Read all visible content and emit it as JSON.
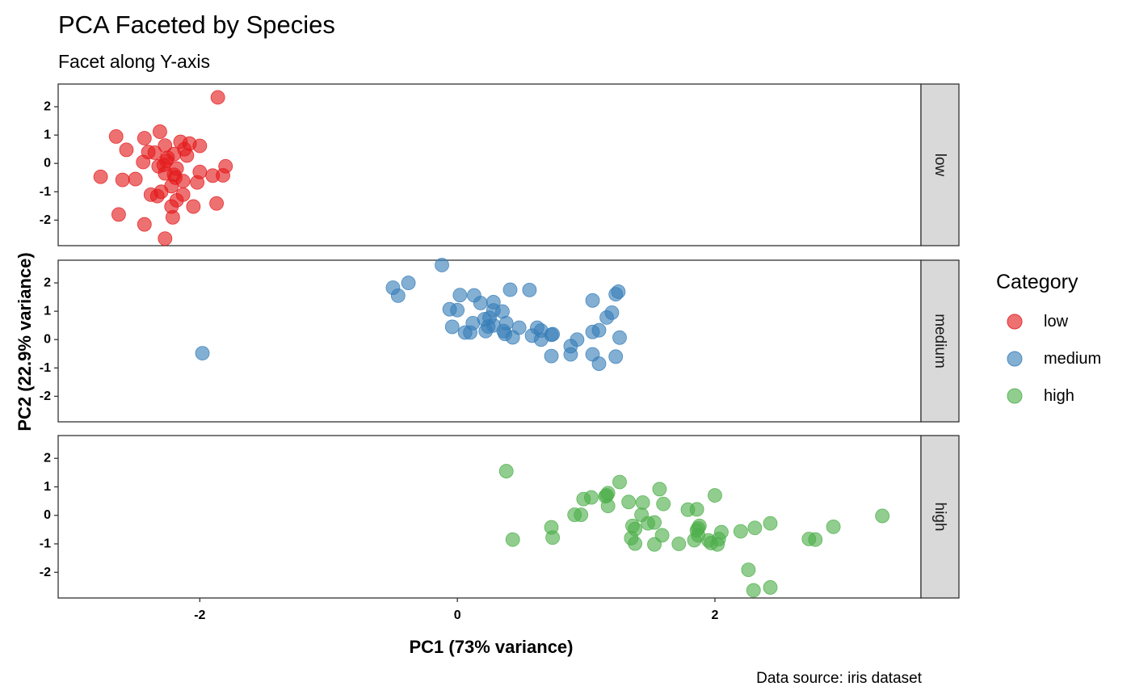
{
  "chart_data": {
    "type": "scatter",
    "title": "PCA Faceted by Species",
    "subtitle": "Facet along Y-axis",
    "xlabel": "PC1 (73% variance)",
    "ylabel": "PC2 (22.9% variance)",
    "caption": "Data source: iris dataset",
    "xlim": [
      -3.1,
      3.6
    ],
    "ylim": [
      -2.9,
      2.8
    ],
    "x_ticks": [
      -2,
      0,
      2
    ],
    "x_tick_labels": [
      "-2",
      "0",
      "2"
    ],
    "y_ticks": [
      2,
      1,
      0,
      -1,
      -2
    ],
    "y_tick_labels": [
      "2",
      "1",
      "0",
      "-1",
      "-2"
    ],
    "grid": false,
    "legend": {
      "title": "Category",
      "position": "right",
      "entries": [
        {
          "label": "low",
          "color": "#E41A1C"
        },
        {
          "label": "medium",
          "color": "#377EB8"
        },
        {
          "label": "high",
          "color": "#4DAF4A"
        }
      ]
    },
    "facets": [
      {
        "strip_label": "low",
        "color": "#E41A1C",
        "points": [
          [
            -1.86,
            2.33
          ],
          [
            -2.65,
            0.95
          ],
          [
            -2.31,
            1.12
          ],
          [
            -2.43,
            0.89
          ],
          [
            -2.15,
            0.76
          ],
          [
            -2.08,
            0.7
          ],
          [
            -2.0,
            0.62
          ],
          [
            -2.27,
            0.63
          ],
          [
            -2.4,
            0.4
          ],
          [
            -2.12,
            0.5
          ],
          [
            -2.57,
            0.48
          ],
          [
            -2.35,
            0.38
          ],
          [
            -2.2,
            0.33
          ],
          [
            -2.25,
            0.2
          ],
          [
            -2.44,
            0.05
          ],
          [
            -2.32,
            -0.1
          ],
          [
            -2.18,
            -0.18
          ],
          [
            -1.8,
            -0.1
          ],
          [
            -2.0,
            -0.3
          ],
          [
            -2.27,
            -0.35
          ],
          [
            -1.82,
            -0.42
          ],
          [
            -1.9,
            -0.43
          ],
          [
            -2.2,
            -0.4
          ],
          [
            -2.5,
            -0.55
          ],
          [
            -2.13,
            -0.62
          ],
          [
            -2.02,
            -0.67
          ],
          [
            -2.77,
            -0.47
          ],
          [
            -2.6,
            -0.58
          ],
          [
            -2.22,
            -0.8
          ],
          [
            -2.3,
            -1.0
          ],
          [
            -2.13,
            -1.1
          ],
          [
            -2.38,
            -1.1
          ],
          [
            -2.33,
            -1.15
          ],
          [
            -2.18,
            -1.3
          ],
          [
            -1.87,
            -1.41
          ],
          [
            -2.05,
            -1.52
          ],
          [
            -2.22,
            -1.52
          ],
          [
            -2.63,
            -1.8
          ],
          [
            -2.21,
            -1.9
          ],
          [
            -2.43,
            -2.15
          ],
          [
            -2.27,
            -2.65
          ],
          [
            -2.26,
            0.1
          ],
          [
            -2.19,
            -0.5
          ],
          [
            -2.1,
            0.28
          ],
          [
            -2.28,
            -0.05
          ]
        ]
      },
      {
        "strip_label": "medium",
        "color": "#377EB8",
        "points": [
          [
            -0.12,
            2.63
          ],
          [
            -0.38,
            2.0
          ],
          [
            -0.5,
            1.83
          ],
          [
            -0.46,
            1.55
          ],
          [
            1.25,
            1.69
          ],
          [
            1.23,
            1.6
          ],
          [
            0.41,
            1.76
          ],
          [
            0.56,
            1.75
          ],
          [
            0.02,
            1.57
          ],
          [
            0.13,
            1.56
          ],
          [
            0.18,
            1.29
          ],
          [
            0.28,
            1.32
          ],
          [
            1.05,
            1.38
          ],
          [
            -0.06,
            1.07
          ],
          [
            0.0,
            1.04
          ],
          [
            0.35,
            0.99
          ],
          [
            0.28,
            1.03
          ],
          [
            1.2,
            0.95
          ],
          [
            1.16,
            0.78
          ],
          [
            0.38,
            0.58
          ],
          [
            0.25,
            0.77
          ],
          [
            0.21,
            0.72
          ],
          [
            0.12,
            0.58
          ],
          [
            0.24,
            0.46
          ],
          [
            0.36,
            0.3
          ],
          [
            0.48,
            0.42
          ],
          [
            0.62,
            0.42
          ],
          [
            0.65,
            0.32
          ],
          [
            0.06,
            0.25
          ],
          [
            0.1,
            0.25
          ],
          [
            0.22,
            0.3
          ],
          [
            0.37,
            0.2
          ],
          [
            0.43,
            0.08
          ],
          [
            0.58,
            0.14
          ],
          [
            0.65,
            0.0
          ],
          [
            0.73,
            0.17
          ],
          [
            0.74,
            0.19
          ],
          [
            1.05,
            0.27
          ],
          [
            1.1,
            0.33
          ],
          [
            1.26,
            0.07
          ],
          [
            0.93,
            0.0
          ],
          [
            0.88,
            -0.23
          ],
          [
            0.73,
            -0.58
          ],
          [
            0.88,
            -0.52
          ],
          [
            1.05,
            -0.52
          ],
          [
            1.23,
            -0.6
          ],
          [
            1.1,
            -0.85
          ],
          [
            -1.98,
            -0.48
          ],
          [
            -0.04,
            0.45
          ],
          [
            0.28,
            0.5
          ]
        ]
      },
      {
        "strip_label": "high",
        "color": "#4DAF4A",
        "points": [
          [
            0.38,
            1.55
          ],
          [
            1.26,
            1.17
          ],
          [
            1.57,
            0.92
          ],
          [
            2.0,
            0.7
          ],
          [
            1.04,
            0.63
          ],
          [
            0.98,
            0.57
          ],
          [
            1.16,
            0.7
          ],
          [
            1.15,
            0.67
          ],
          [
            1.33,
            0.47
          ],
          [
            1.44,
            0.45
          ],
          [
            1.6,
            0.4
          ],
          [
            1.17,
            0.33
          ],
          [
            1.79,
            0.2
          ],
          [
            1.86,
            0.21
          ],
          [
            0.91,
            0.02
          ],
          [
            0.96,
            0.02
          ],
          [
            1.43,
            0.02
          ],
          [
            3.3,
            -0.02
          ],
          [
            1.48,
            -0.28
          ],
          [
            1.36,
            -0.37
          ],
          [
            1.88,
            -0.37
          ],
          [
            1.59,
            -0.7
          ],
          [
            2.05,
            -0.59
          ],
          [
            1.86,
            -0.53
          ],
          [
            2.2,
            -0.56
          ],
          [
            2.31,
            -0.44
          ],
          [
            2.43,
            -0.28
          ],
          [
            2.92,
            -0.4
          ],
          [
            2.78,
            -0.85
          ],
          [
            2.73,
            -0.83
          ],
          [
            2.03,
            -0.83
          ],
          [
            1.97,
            -0.97
          ],
          [
            1.84,
            -0.87
          ],
          [
            1.53,
            -1.02
          ],
          [
            1.72,
            -1.0
          ],
          [
            1.38,
            -0.99
          ],
          [
            1.35,
            -0.8
          ],
          [
            0.74,
            -0.78
          ],
          [
            0.43,
            -0.85
          ],
          [
            2.26,
            -1.91
          ],
          [
            2.3,
            -2.63
          ],
          [
            2.43,
            -2.53
          ],
          [
            0.73,
            -0.42
          ],
          [
            1.87,
            -0.7
          ],
          [
            1.95,
            -0.88
          ],
          [
            1.87,
            -0.45
          ],
          [
            1.53,
            -0.25
          ],
          [
            2.02,
            -1.02
          ],
          [
            1.38,
            -0.48
          ],
          [
            1.17,
            0.78
          ]
        ]
      }
    ]
  }
}
